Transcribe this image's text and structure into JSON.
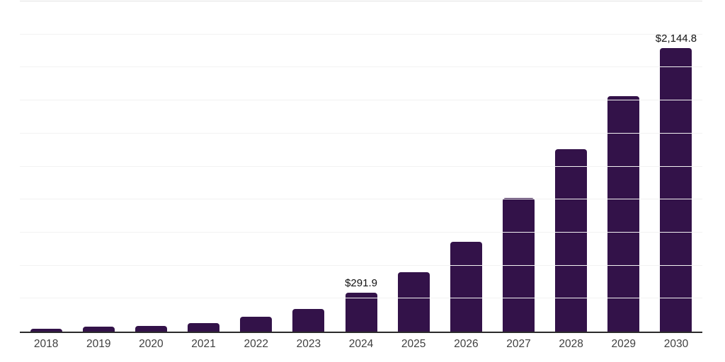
{
  "chart_style": {
    "background_color": "#ffffff",
    "bar_color": "#331249",
    "axis_line_color": "#2b2b2b",
    "gridline_color": "#f2f2f2",
    "top_gridline_color": "#e3e3e3",
    "tick_label_color": "#404040",
    "value_label_color": "#111111"
  },
  "chart_data": {
    "type": "bar",
    "title": "",
    "xlabel": "",
    "ylabel": "",
    "categories": [
      "2018",
      "2019",
      "2020",
      "2021",
      "2022",
      "2023",
      "2024",
      "2025",
      "2026",
      "2027",
      "2028",
      "2029",
      "2030"
    ],
    "values": [
      20,
      36,
      45,
      64,
      112,
      172,
      291.9,
      452,
      680,
      1010,
      1380,
      1785,
      2144.8
    ],
    "value_labels": {
      "2024": "$291.9",
      "2030": "$2,144.8"
    },
    "ylim": [
      0,
      2500
    ],
    "gridline_step": 250,
    "grid": true,
    "legend": "none",
    "y_axis_labels_visible": false
  }
}
